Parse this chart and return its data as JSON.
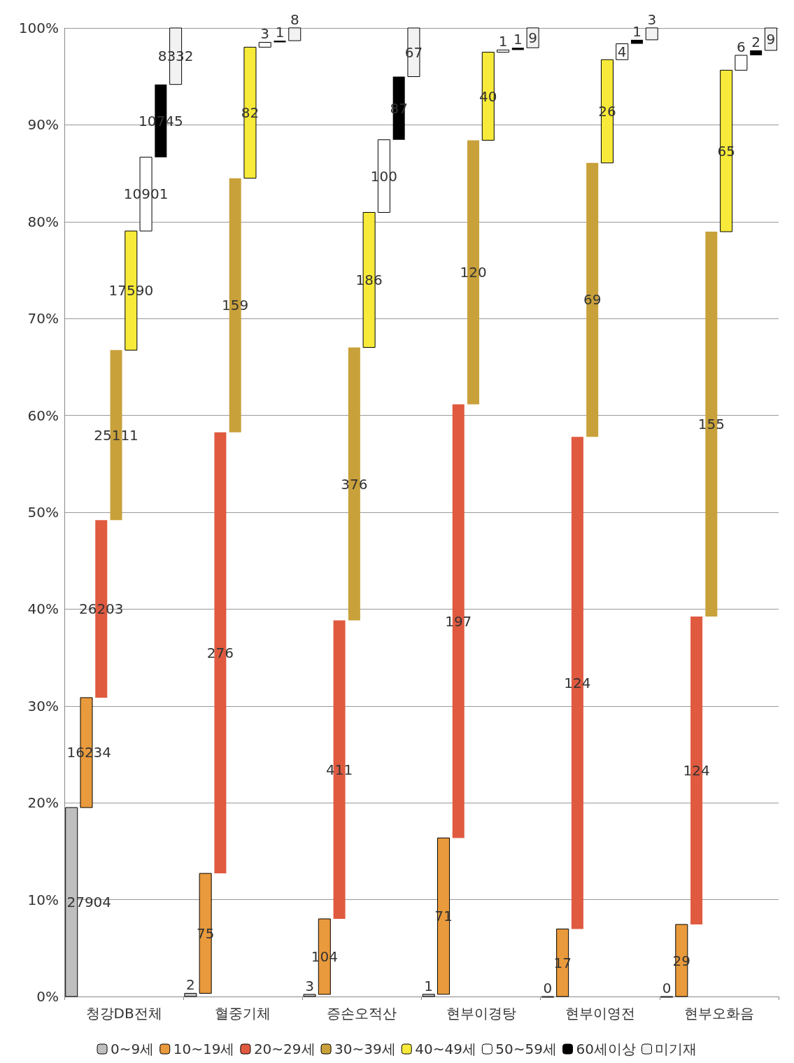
{
  "chart_data": {
    "type": "bar",
    "stacked": true,
    "categories": [
      "청강DB전체",
      "혈중기체",
      "증손오적산",
      "현부이경탕",
      "현부이영전",
      "현부오화음"
    ],
    "series": [
      {
        "name": "0~9세",
        "color": "#bfbfbf",
        "values": [
          19.51,
          0.33,
          0.22,
          0.23,
          0,
          0
        ]
      },
      {
        "name": "10~19세",
        "color": "#e99a3c",
        "values": [
          11.35,
          12.38,
          7.8,
          16.14,
          6.97,
          7.44
        ]
      },
      {
        "name": "20~29세",
        "color": "#e05a40",
        "values": [
          18.32,
          45.54,
          30.81,
          44.77,
          50.82,
          31.79
        ]
      },
      {
        "name": "30~39세",
        "color": "#c9a13a",
        "values": [
          17.56,
          26.24,
          28.19,
          27.27,
          28.28,
          39.74
        ]
      },
      {
        "name": "40~49세",
        "color": "#f7ea3a",
        "values": [
          12.3,
          13.53,
          13.94,
          9.09,
          10.66,
          16.67
        ]
      },
      {
        "name": "50~59세",
        "color": "#ffffff",
        "values": [
          7.62,
          0.5,
          7.5,
          0.23,
          1.64,
          1.54
        ]
      },
      {
        "name": "60세이상",
        "color": "#000000",
        "values": [
          7.51,
          0.17,
          6.52,
          0.23,
          0.41,
          0.51
        ]
      },
      {
        "name": "미기재",
        "color": "#f2f2f2",
        "values": [
          5.83,
          1.32,
          5.02,
          2.05,
          1.23,
          2.31
        ]
      }
    ],
    "ylim": [
      0,
      100
    ],
    "yticks": [
      {
        "value": 0,
        "label": "0%"
      },
      {
        "value": 10,
        "label": "10%"
      },
      {
        "value": 20,
        "label": "20%"
      },
      {
        "value": 30,
        "label": "30%"
      },
      {
        "value": 40,
        "label": "40%"
      },
      {
        "value": 50,
        "label": "50%"
      },
      {
        "value": 60,
        "label": "60%"
      },
      {
        "value": 70,
        "label": "70%"
      },
      {
        "value": 80,
        "label": "80%"
      },
      {
        "value": 90,
        "label": "90%"
      },
      {
        "value": 100,
        "label": "100%"
      }
    ],
    "grid": "y",
    "legend": "bottom",
    "annotations": [
      "27904",
      "16234",
      "26203",
      "25111",
      "17590",
      "10901",
      "10745",
      "8332",
      "2",
      "75",
      "276",
      "159",
      "82",
      "3",
      "1",
      "8",
      "3",
      "104",
      "411",
      "376",
      "186",
      "100",
      "87",
      "67",
      "1",
      "71",
      "197",
      "120",
      "40",
      "1",
      "1",
      "9",
      "0",
      "17",
      "124",
      "69",
      "26",
      "4",
      "1",
      "3",
      "0",
      "29",
      "124",
      "155",
      "65",
      "6",
      "2",
      "9"
    ]
  }
}
